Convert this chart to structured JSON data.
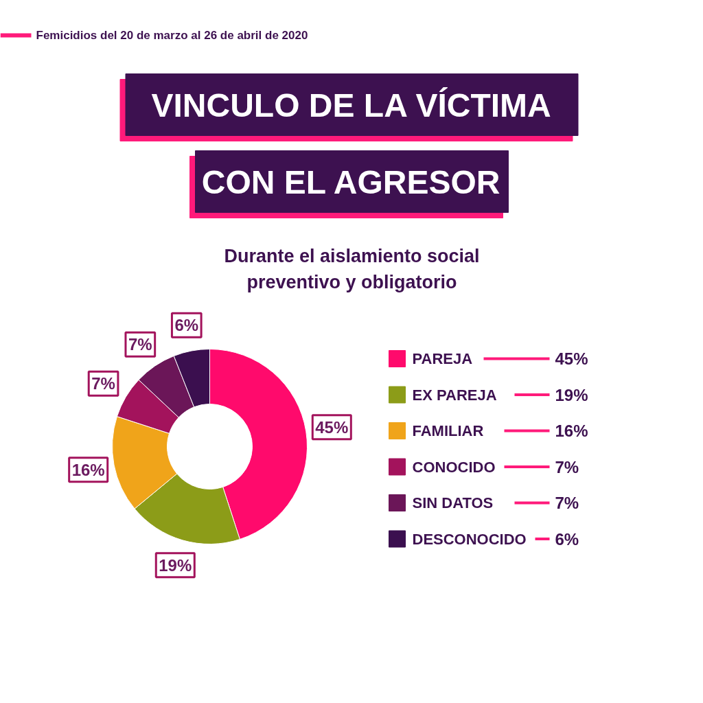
{
  "chart_data": {
    "type": "donut",
    "title": "VINCULO DE LA VÍCTIMA\nCON EL AGRESOR",
    "subtitle": "Durante el aislamiento social\npreventivo y obligatorio",
    "annotations": [
      "Femicidios del 20 de marzo al 26 de abril de 2020"
    ],
    "categories": [
      "PAREJA",
      "EX PAREJA",
      "FAMILIAR",
      "CONOCIDO",
      "SIN DATOS",
      "DESCONOCIDO"
    ],
    "values": [
      45,
      19,
      16,
      7,
      7,
      6
    ],
    "colors": [
      "#ff0a6c",
      "#8c9c18",
      "#f0a41a",
      "#a3135c",
      "#6b1658",
      "#3b0f4f"
    ],
    "value_labels": [
      "45%",
      "19%",
      "16%",
      "7%",
      "7%",
      "6%"
    ],
    "legend": "right"
  }
}
